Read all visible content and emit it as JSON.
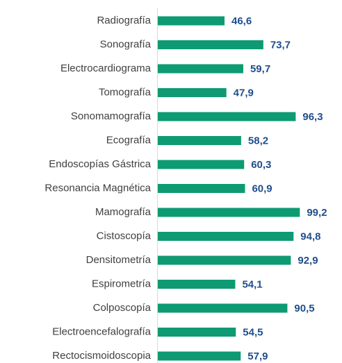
{
  "chart_data": {
    "type": "bar",
    "orientation": "horizontal",
    "categories": [
      "Radiografía",
      "Sonografía",
      "Electrocardiograma",
      "Tomografía",
      "Sonomamografía",
      "Ecografía",
      "Endoscopías Gástrica",
      "Resonancia Magnética",
      "Mamografía",
      "Cistoscopía",
      "Densitometría",
      "Espirometría",
      "Colposcopía",
      "Electroencefalografía",
      "Rectocismoidoscopia"
    ],
    "values": [
      46.6,
      73.7,
      59.7,
      47.9,
      96.3,
      58.2,
      60.3,
      60.9,
      99.2,
      94.8,
      92.9,
      54.1,
      90.5,
      54.5,
      57.9
    ],
    "value_labels": [
      "46,6",
      "73,7",
      "59,7",
      "47,9",
      "96,3",
      "58,2",
      "60,3",
      "60,9",
      "99,2",
      "94,8",
      "92,9",
      "54,1",
      "90,5",
      "54,5",
      "57,9"
    ],
    "color": "#0e9a72",
    "xlim": [
      0,
      100
    ]
  }
}
